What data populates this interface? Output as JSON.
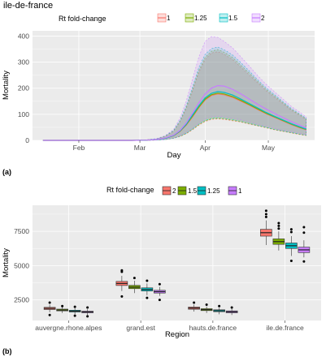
{
  "panels": [
    {
      "label": "(a)"
    },
    {
      "label": "(b)"
    }
  ],
  "chart_data": [
    {
      "type": "line",
      "title": "ile-de-france",
      "xlabel": "Day",
      "ylabel": "Mortality",
      "legend_title": "Rt fold-change",
      "legend_position": "top",
      "grid": true,
      "x_ticks": [
        "Feb",
        "Mar",
        "Apr",
        "May"
      ],
      "y_ticks": [
        0,
        100,
        200,
        300,
        400
      ],
      "ylim": [
        0,
        420
      ],
      "x": [
        "2020-01-15",
        "2020-01-22",
        "2020-01-29",
        "2020-02-05",
        "2020-02-12",
        "2020-02-19",
        "2020-02-26",
        "2020-03-04",
        "2020-03-09",
        "2020-03-13",
        "2020-03-17",
        "2020-03-20",
        "2020-03-23",
        "2020-03-26",
        "2020-03-29",
        "2020-04-01",
        "2020-04-04",
        "2020-04-07",
        "2020-04-10",
        "2020-04-14",
        "2020-04-18",
        "2020-04-22",
        "2020-04-26",
        "2020-04-30",
        "2020-05-04",
        "2020-05-08",
        "2020-05-12",
        "2020-05-16",
        "2020-05-19"
      ],
      "series": [
        {
          "name": "1",
          "color": "#f8766d",
          "values": [
            0,
            0,
            0,
            0,
            0,
            0,
            0,
            1,
            3,
            8,
            18,
            34,
            58,
            90,
            125,
            155,
            172,
            178,
            175,
            165,
            150,
            135,
            118,
            102,
            88,
            74,
            60,
            48,
            40
          ],
          "lower": [
            0,
            0,
            0,
            0,
            0,
            0,
            0,
            0,
            1,
            3,
            8,
            15,
            25,
            40,
            58,
            72,
            80,
            82,
            80,
            75,
            70,
            62,
            55,
            48,
            40,
            34,
            28,
            22,
            18
          ],
          "upper": [
            0,
            0,
            0,
            0,
            0,
            0,
            0,
            2,
            6,
            15,
            35,
            70,
            120,
            190,
            260,
            310,
            335,
            340,
            330,
            310,
            280,
            250,
            220,
            190,
            165,
            140,
            115,
            95,
            80
          ]
        },
        {
          "name": "1.25",
          "color": "#7cae00",
          "values": [
            0,
            0,
            0,
            0,
            0,
            0,
            0,
            1,
            3,
            8,
            18,
            35,
            60,
            93,
            128,
            158,
            175,
            181,
            178,
            168,
            153,
            137,
            120,
            104,
            90,
            76,
            62,
            50,
            42
          ],
          "lower": [
            0,
            0,
            0,
            0,
            0,
            0,
            0,
            0,
            1,
            3,
            8,
            15,
            26,
            42,
            60,
            74,
            82,
            84,
            82,
            77,
            71,
            64,
            56,
            49,
            41,
            35,
            29,
            23,
            19
          ],
          "upper": [
            0,
            0,
            0,
            0,
            0,
            0,
            0,
            2,
            6,
            16,
            36,
            72,
            125,
            195,
            268,
            318,
            342,
            348,
            338,
            318,
            288,
            258,
            226,
            196,
            170,
            144,
            118,
            98,
            82
          ]
        },
        {
          "name": "1.5",
          "color": "#00bfc4",
          "values": [
            0,
            0,
            0,
            0,
            0,
            0,
            0,
            1,
            3,
            8,
            19,
            36,
            62,
            97,
            133,
            163,
            180,
            187,
            184,
            174,
            158,
            141,
            124,
            107,
            92,
            78,
            64,
            52,
            43
          ],
          "lower": [
            0,
            0,
            0,
            0,
            0,
            0,
            0,
            0,
            1,
            3,
            8,
            16,
            27,
            43,
            62,
            76,
            84,
            86,
            84,
            79,
            73,
            65,
            57,
            50,
            42,
            36,
            30,
            24,
            20
          ],
          "upper": [
            0,
            0,
            0,
            0,
            0,
            0,
            0,
            2,
            7,
            17,
            38,
            76,
            132,
            205,
            280,
            330,
            352,
            358,
            348,
            328,
            298,
            266,
            232,
            202,
            175,
            148,
            122,
            101,
            85
          ]
        },
        {
          "name": "2",
          "color": "#c77cff",
          "values": [
            0,
            0,
            0,
            0,
            0,
            0,
            0,
            1,
            3,
            9,
            20,
            38,
            66,
            104,
            143,
            178,
            200,
            210,
            208,
            196,
            178,
            158,
            138,
            120,
            103,
            87,
            72,
            58,
            48
          ],
          "lower": [
            0,
            0,
            0,
            0,
            0,
            0,
            0,
            0,
            1,
            3,
            9,
            17,
            29,
            46,
            66,
            82,
            90,
            92,
            90,
            85,
            78,
            70,
            61,
            53,
            45,
            38,
            32,
            26,
            21
          ],
          "upper": [
            0,
            0,
            0,
            0,
            0,
            0,
            0,
            2,
            7,
            18,
            42,
            85,
            150,
            235,
            320,
            380,
            398,
            395,
            380,
            355,
            320,
            285,
            248,
            215,
            186,
            158,
            130,
            108,
            90
          ]
        }
      ]
    },
    {
      "type": "box",
      "xlabel": "Region",
      "ylabel": "Mortality",
      "legend_title": "Rt fold-change",
      "legend_position": "top",
      "grid": true,
      "y_ticks": [
        2500,
        5000,
        7500
      ],
      "ylim": [
        1000,
        9400
      ],
      "categories": [
        "auvergne.rhone.alpes",
        "grand.est",
        "hauts.de.france",
        "ile.de.france"
      ],
      "series": [
        {
          "name": "2",
          "color": "#f8766d",
          "boxes": [
            {
              "min": 1600,
              "q1": 1800,
              "median": 1880,
              "q3": 1960,
              "max": 2150,
              "outliers": [
                1400,
                2300
              ]
            },
            {
              "min": 3150,
              "q1": 3550,
              "median": 3700,
              "q3": 3850,
              "max": 4250,
              "outliers": [
                2750,
                4550,
                4650
              ]
            },
            {
              "min": 1650,
              "q1": 1820,
              "median": 1900,
              "q3": 1980,
              "max": 2150,
              "outliers": [
                2300
              ]
            },
            {
              "min": 6500,
              "q1": 7150,
              "median": 7400,
              "q3": 7650,
              "max": 8300,
              "outliers": [
                8550,
                8750,
                9000
              ]
            }
          ]
        },
        {
          "name": "1.5",
          "color": "#7cae00",
          "boxes": [
            {
              "min": 1550,
              "q1": 1700,
              "median": 1760,
              "q3": 1830,
              "max": 1980,
              "outliers": [
                2050
              ]
            },
            {
              "min": 3000,
              "q1": 3320,
              "median": 3430,
              "q3": 3560,
              "max": 3900,
              "outliers": [
                4100
              ]
            },
            {
              "min": 1550,
              "q1": 1720,
              "median": 1790,
              "q3": 1860,
              "max": 2020,
              "outliers": [
                2150
              ]
            },
            {
              "min": 6100,
              "q1": 6550,
              "median": 6750,
              "q3": 6950,
              "max": 7500,
              "outliers": [
                7700,
                7900,
                8100
              ]
            }
          ]
        },
        {
          "name": "1.25",
          "color": "#00bfc4",
          "boxes": [
            {
              "min": 1450,
              "q1": 1620,
              "median": 1680,
              "q3": 1750,
              "max": 1900,
              "outliers": [
                1350,
                2000
              ]
            },
            {
              "min": 2850,
              "q1": 3150,
              "median": 3260,
              "q3": 3380,
              "max": 3700,
              "outliers": [
                2650,
                3900
              ]
            },
            {
              "min": 1450,
              "q1": 1640,
              "median": 1710,
              "q3": 1780,
              "max": 1920,
              "outliers": [
                2050
              ]
            },
            {
              "min": 5700,
              "q1": 6250,
              "median": 6450,
              "q3": 6650,
              "max": 7150,
              "outliers": [
                5350,
                7450,
                7650
              ]
            }
          ]
        },
        {
          "name": "1",
          "color": "#c77cff",
          "boxes": [
            {
              "min": 1400,
              "q1": 1560,
              "median": 1620,
              "q3": 1680,
              "max": 1820,
              "outliers": [
                1300,
                1950
              ]
            },
            {
              "min": 2800,
              "q1": 3000,
              "median": 3100,
              "q3": 3200,
              "max": 3450,
              "outliers": [
                2500,
                3650
              ]
            },
            {
              "min": 1400,
              "q1": 1560,
              "median": 1630,
              "q3": 1700,
              "max": 1850,
              "outliers": [
                1950
              ]
            },
            {
              "min": 5600,
              "q1": 5950,
              "median": 6150,
              "q3": 6350,
              "max": 6850,
              "outliers": [
                5300,
                7400,
                7800
              ]
            }
          ]
        }
      ]
    }
  ]
}
